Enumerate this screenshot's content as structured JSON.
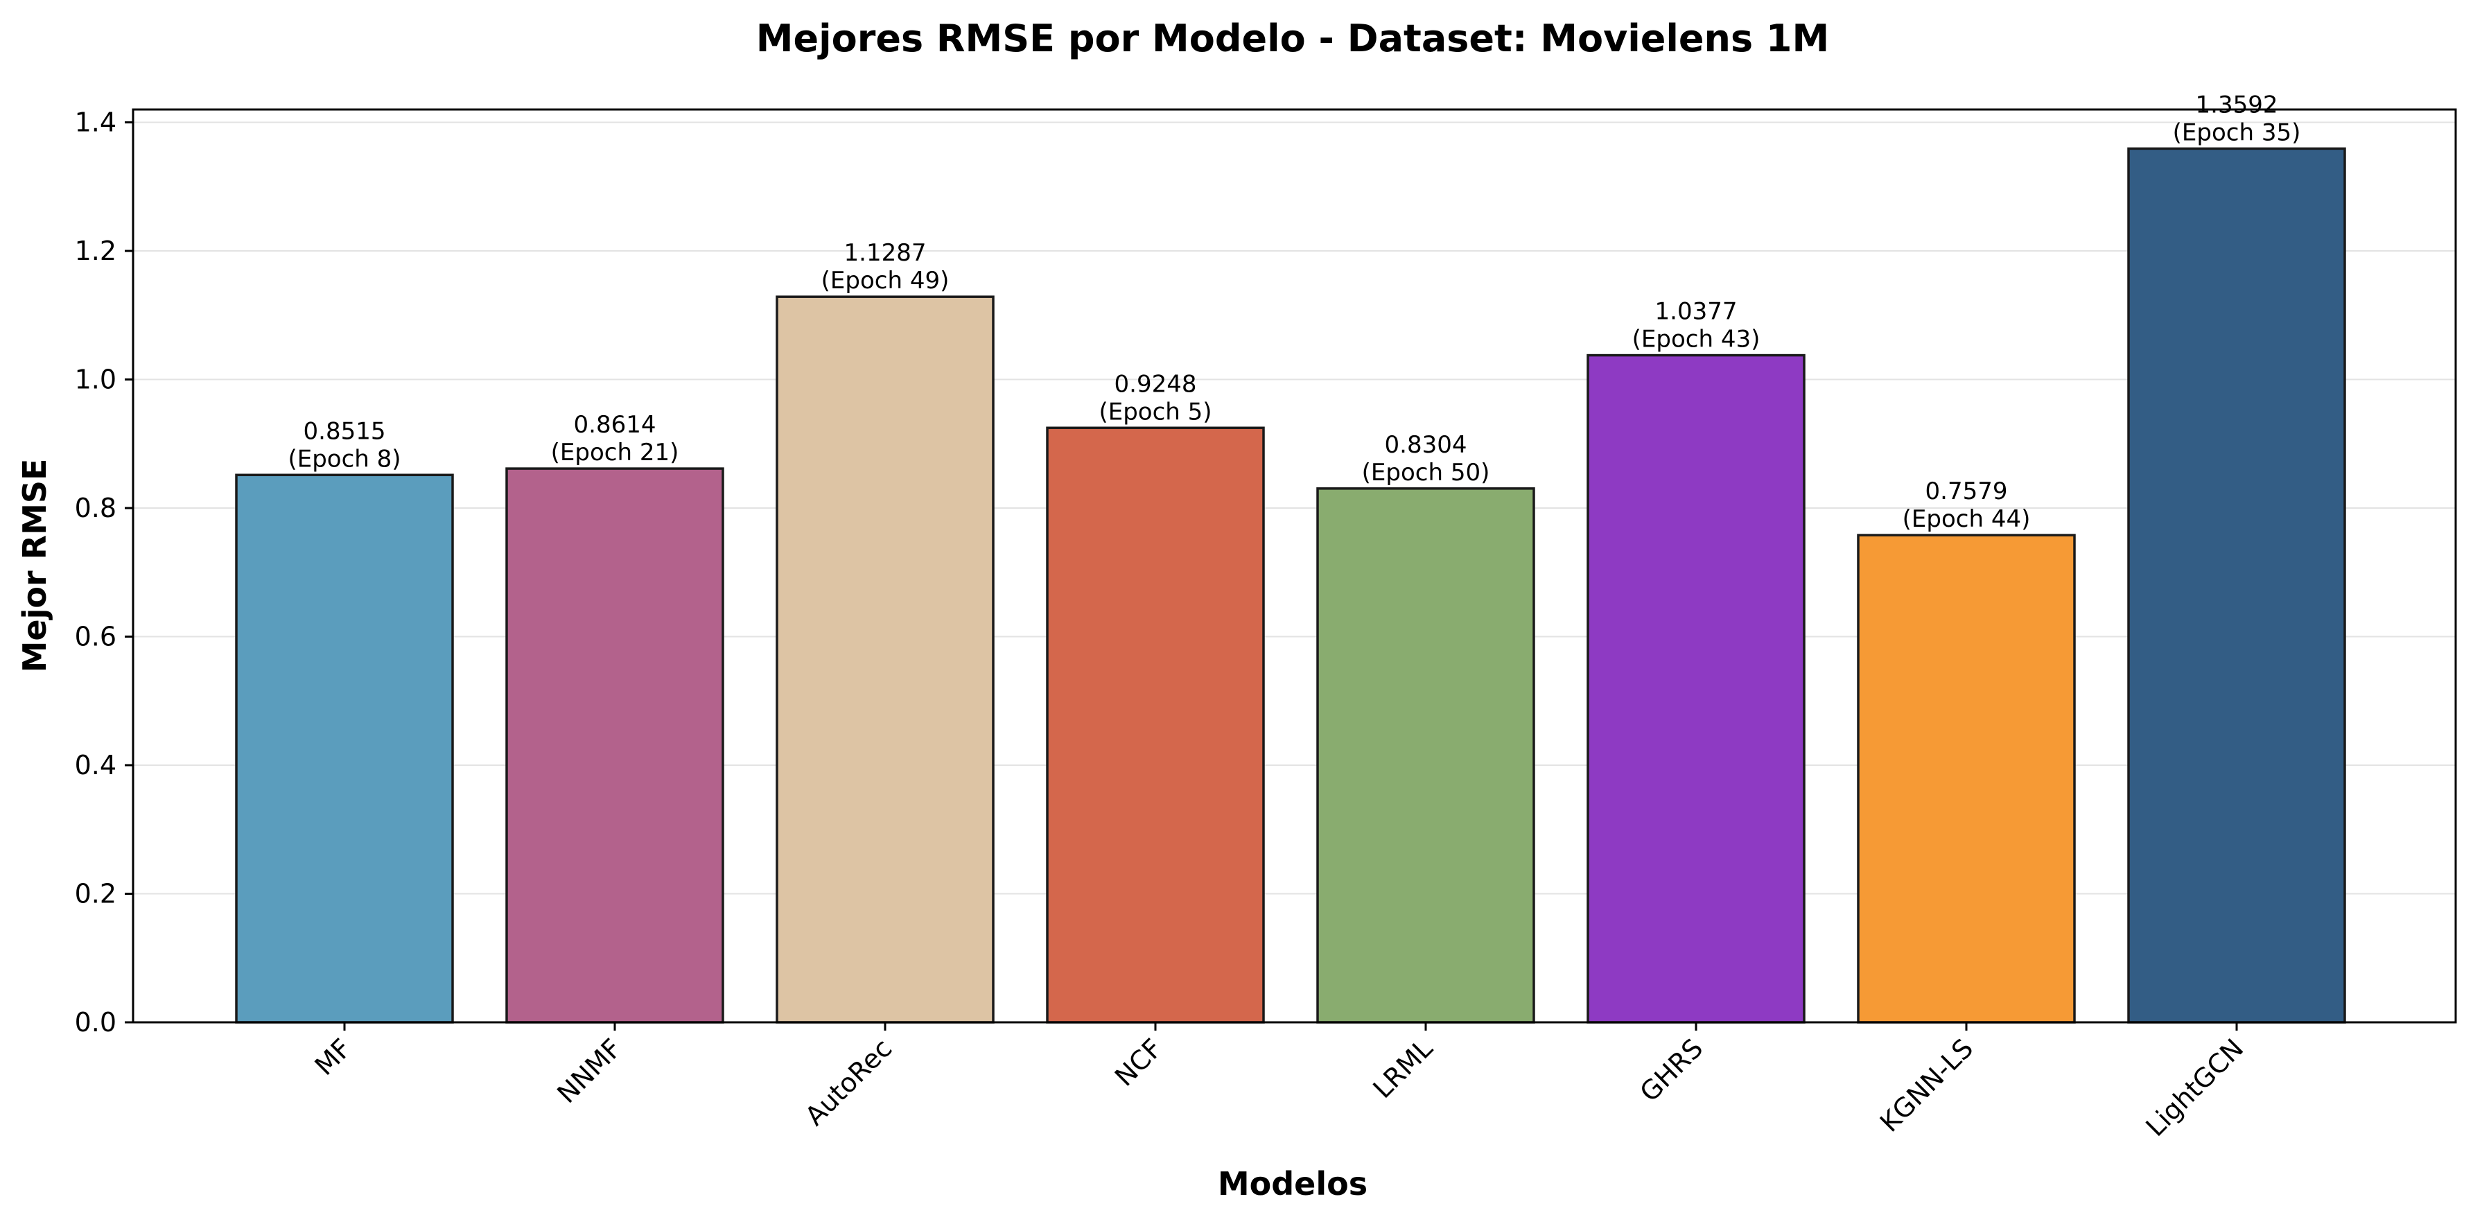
{
  "chart_data": {
    "type": "bar",
    "title": "Mejores RMSE por Modelo - Dataset: Movielens 1M",
    "xlabel": "Modelos",
    "ylabel": "Mejor RMSE",
    "ylim": [
      0,
      1.42
    ],
    "yticks": [
      "0.0",
      "0.2",
      "0.4",
      "0.6",
      "0.8",
      "1.0",
      "1.2",
      "1.4"
    ],
    "grid": true,
    "categories": [
      "MF",
      "NNMF",
      "AutoRec",
      "NCF",
      "LRML",
      "GHRS",
      "KGNN-LS",
      "LightGCN"
    ],
    "values": [
      0.8515,
      0.8614,
      1.1287,
      0.9248,
      0.8304,
      1.0377,
      0.7579,
      1.3592
    ],
    "value_labels": [
      "0.8515",
      "0.8614",
      "1.1287",
      "0.9248",
      "0.8304",
      "1.0377",
      "0.7579",
      "1.3592"
    ],
    "epoch_labels": [
      "(Epoch 8)",
      "(Epoch 21)",
      "(Epoch 49)",
      "(Epoch 5)",
      "(Epoch 50)",
      "(Epoch 43)",
      "(Epoch 44)",
      "(Epoch 35)"
    ],
    "colors": [
      "#5b9dbd",
      "#b3628c",
      "#ddc4a4",
      "#d4674c",
      "#89ac6f",
      "#8e3ac3",
      "#f69a35",
      "#335d85"
    ]
  }
}
